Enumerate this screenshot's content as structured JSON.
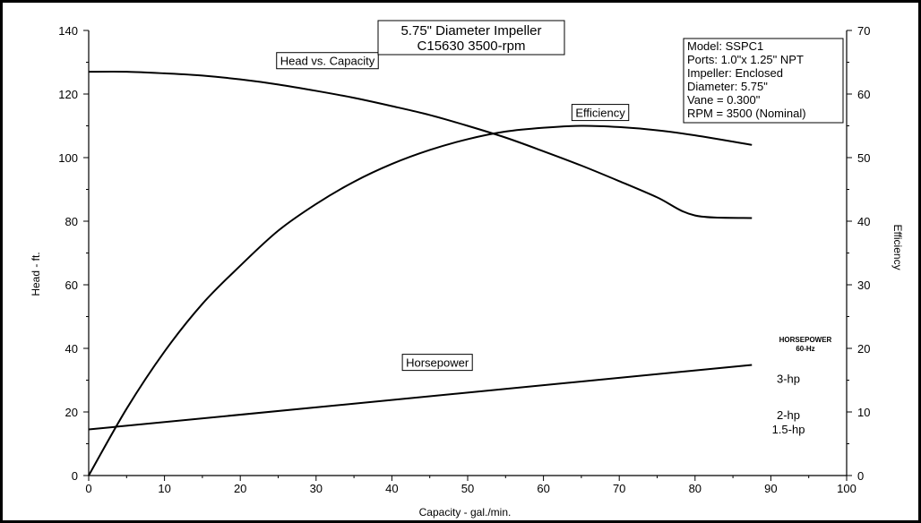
{
  "chart_data": {
    "type": "line",
    "title": [
      "5.75\" Diameter Impeller",
      "C15630 3500-rpm"
    ],
    "xlabel": "Capacity - gal./min.",
    "ylabel": "Head - ft.",
    "y2label": "Efficiency",
    "xlim": [
      0,
      100
    ],
    "ylim": [
      0,
      140
    ],
    "y2lim": [
      0,
      70
    ],
    "x_ticks": [
      0,
      10,
      20,
      30,
      40,
      50,
      60,
      70,
      80,
      90,
      100
    ],
    "y_ticks": [
      0,
      20,
      40,
      60,
      80,
      100,
      120,
      140
    ],
    "y2_ticks": [
      0,
      10,
      20,
      30,
      40,
      50,
      60,
      70
    ],
    "grid": false,
    "series": [
      {
        "name": "Head vs. Capacity",
        "axis": "left",
        "x": [
          0,
          5,
          10,
          15,
          20,
          25,
          30,
          35,
          40,
          45,
          50,
          55,
          60,
          65,
          70,
          75,
          80,
          87.5
        ],
        "y": [
          127,
          127,
          126.5,
          125.8,
          124.6,
          123,
          121,
          118.8,
          116.2,
          113.4,
          110,
          106.3,
          102,
          97.5,
          92.6,
          87.5,
          81.8,
          81
        ]
      },
      {
        "name": "Efficiency",
        "axis": "right",
        "x": [
          0,
          5,
          10,
          15,
          20,
          25,
          30,
          35,
          40,
          45,
          50,
          55,
          60,
          65,
          70,
          75,
          80,
          87.5
        ],
        "y": [
          0,
          10.5,
          19.5,
          27,
          33,
          38.5,
          42.7,
          46.2,
          49,
          51.2,
          52.9,
          54.1,
          54.7,
          55,
          54.8,
          54.3,
          53.5,
          52
        ]
      },
      {
        "name": "Horsepower",
        "axis": "left",
        "x": [
          0,
          87.5
        ],
        "y": [
          14.5,
          34.8
        ]
      }
    ],
    "annotations": {
      "curve_labels": [
        {
          "text": "Head vs. Capacity",
          "x": 31.5,
          "y": 130.5
        },
        {
          "text": "Efficiency",
          "x": 67.5,
          "y": 114.2
        },
        {
          "text": "Horsepower",
          "x": 46,
          "y": 35.6
        }
      ],
      "info_box": [
        "Model:  SSPC1",
        "Ports: 1.0\"x 1.25\" NPT",
        "Impeller:  Enclosed",
        "Diameter:  5.75\"",
        "Vane = 0.300\"",
        "RPM = 3500 (Nominal)"
      ],
      "horsepower_key": {
        "heading": [
          "HORSEPOWER",
          "60-Hz"
        ],
        "ratings": [
          {
            "label": "3-hp",
            "y": 30.5
          },
          {
            "label": "2-hp",
            "y": 19.2
          },
          {
            "label": "1.5-hp",
            "y": 14.6
          }
        ]
      }
    }
  }
}
